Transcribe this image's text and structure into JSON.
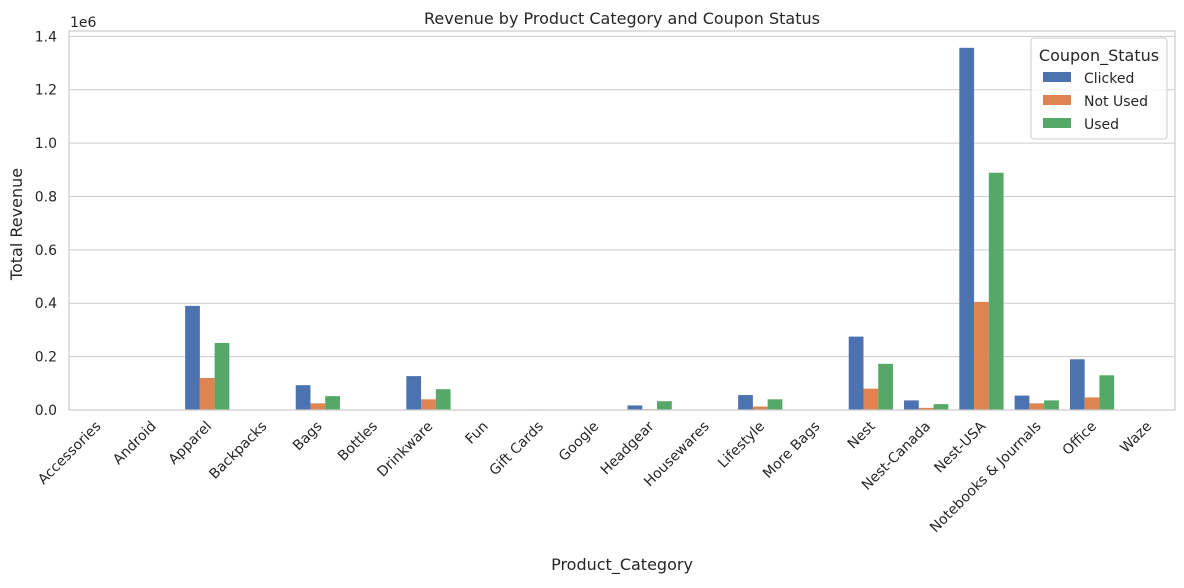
{
  "chart_data": {
    "type": "bar",
    "title": "Revenue by Product Category and Coupon Status",
    "xlabel": "Product_Category",
    "ylabel": "Total Revenue",
    "y_offset_label": "1e6",
    "ylim": [
      0,
      1.42
    ],
    "yticks": [
      0.0,
      0.2,
      0.4,
      0.6,
      0.8,
      1.0,
      1.2,
      1.4
    ],
    "ytick_labels": [
      "0.0",
      "0.2",
      "0.4",
      "0.6",
      "0.8",
      "1.0",
      "1.2",
      "1.4"
    ],
    "grid": "horizontal",
    "legend_position": "top-right",
    "legend_title": "Coupon_Status",
    "categories": [
      "Accessories",
      "Android",
      "Apparel",
      "Backpacks",
      "Bags",
      "Bottles",
      "Drinkware",
      "Fun",
      "Gift Cards",
      "Google",
      "Headgear",
      "Housewares",
      "Lifestyle",
      "More Bags",
      "Nest",
      "Nest-Canada",
      "Nest-USA",
      "Notebooks & Journals",
      "Office",
      "Waze"
    ],
    "series": [
      {
        "name": "Clicked",
        "color": "#4c72b0",
        "values": [
          0.001,
          0.0,
          0.39,
          0.0,
          0.093,
          0.0,
          0.127,
          0.0,
          0.0,
          0.001,
          0.017,
          0.0,
          0.056,
          0.0,
          0.275,
          0.036,
          1.357,
          0.054,
          0.19,
          0.002
        ]
      },
      {
        "name": "Not Used",
        "color": "#dd8452",
        "values": [
          0.0,
          0.0,
          0.12,
          0.0,
          0.025,
          0.0,
          0.04,
          0.0,
          0.002,
          0.0,
          0.003,
          0.0,
          0.013,
          0.0,
          0.08,
          0.008,
          0.405,
          0.025,
          0.047,
          0.0
        ]
      },
      {
        "name": "Used",
        "color": "#55a868",
        "values": [
          0.001,
          0.0,
          0.251,
          0.0,
          0.052,
          0.0,
          0.078,
          0.0,
          0.0,
          0.0,
          0.033,
          0.0,
          0.04,
          0.0,
          0.173,
          0.022,
          0.889,
          0.036,
          0.13,
          0.001
        ]
      }
    ]
  }
}
